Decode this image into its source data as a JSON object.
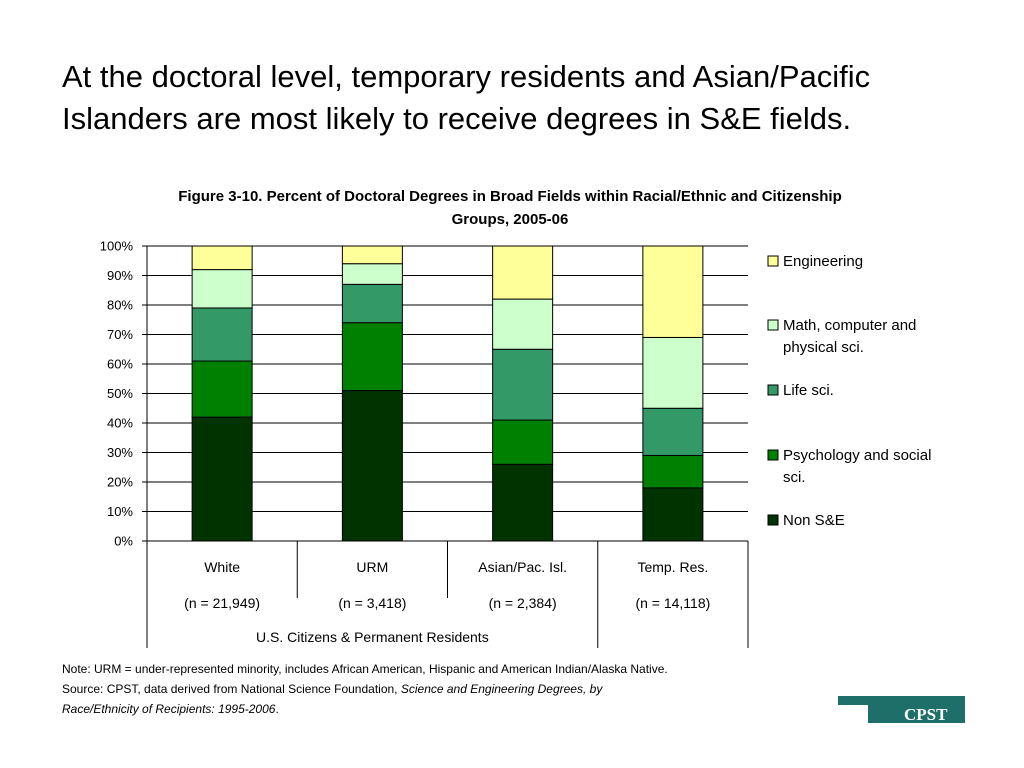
{
  "slide": {
    "title": "At the doctoral level, temporary residents and Asian/Pacific Islanders are most likely to receive degrees in S&E fields."
  },
  "notes": {
    "line1": "Note: URM = under-represented minority, includes African American, Hispanic and American Indian/Alaska Native.",
    "line2_prefix": "Source: CPST, data derived from National Science Foundation, ",
    "line2_italic": "Science and Engineering Degrees, by",
    "line3_italic": "Race/Ethnicity of Recipients: 1995-2006",
    "line3_suffix": "."
  },
  "logo": {
    "text": "CPST",
    "color": "#1e6f6a"
  },
  "chart_data": {
    "type": "bar",
    "stacked": true,
    "title": "Figure 3-10. Percent of Doctoral Degrees in Broad Fields within Racial/Ethnic and Citizenship Groups, 2005-06",
    "categories": [
      "White",
      "URM",
      "Asian/Pac. Isl.",
      "Temp. Res."
    ],
    "category_counts": [
      "(n = 21,949)",
      "(n = 3,418)",
      "(n = 2,384)",
      "(n = 14,118)"
    ],
    "group_label": "U.S. Citizens & Permanent Residents",
    "y_ticks": [
      "0%",
      "10%",
      "20%",
      "30%",
      "40%",
      "50%",
      "60%",
      "70%",
      "80%",
      "90%",
      "100%"
    ],
    "ylim": [
      0,
      100
    ],
    "grid": true,
    "legend_position": "right",
    "series": [
      {
        "name": "Non S&E",
        "color": "#003300",
        "values": [
          42,
          51,
          26,
          18
        ]
      },
      {
        "name": "Psychology and social sci.",
        "color": "#008000",
        "values": [
          19,
          23,
          15,
          11
        ]
      },
      {
        "name": "Life sci.",
        "color": "#339966",
        "values": [
          18,
          13,
          24,
          16
        ]
      },
      {
        "name": "Math, computer and physical sci.",
        "color": "#ccffcc",
        "values": [
          13,
          7,
          17,
          24
        ]
      },
      {
        "name": "Engineering",
        "color": "#ffff99",
        "values": [
          8,
          6,
          18,
          31
        ]
      }
    ],
    "legend_order": [
      [
        "Engineering"
      ],
      [
        "Math, computer and",
        "physical sci."
      ],
      [
        "Life sci."
      ],
      [
        "Psychology and social",
        "sci."
      ],
      [
        "Non S&E"
      ]
    ]
  }
}
